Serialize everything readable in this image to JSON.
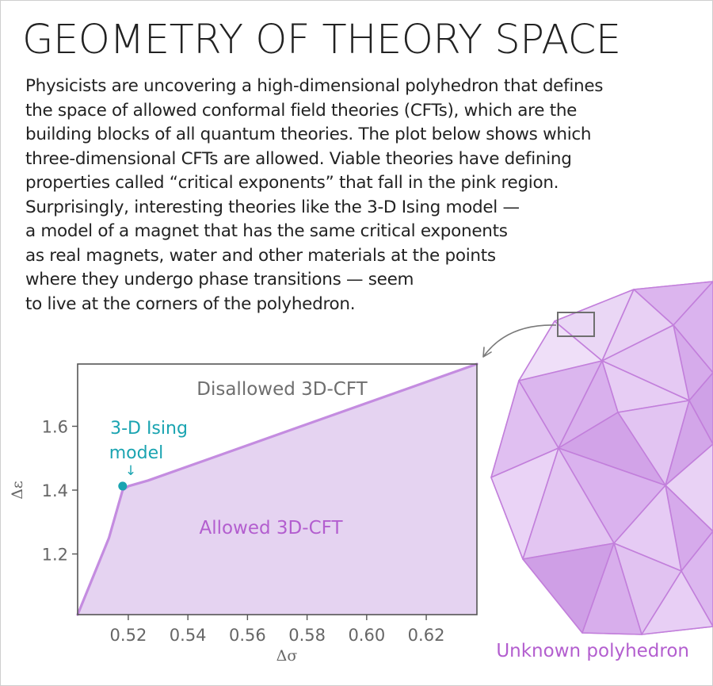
{
  "title": "GEOMETRY OF THEORY SPACE",
  "body_lines": [
    "Physicists are uncovering a high-dimensional polyhedron that defines",
    "the space of allowed conformal field theories (CFTs), which are the",
    "building blocks of all quantum theories. The plot below shows which",
    "three-dimensional CFTs are allowed. Viable theories have defining",
    "properties called “critical exponents” that fall in the pink region.",
    "Surprisingly, interesting theories like the 3-D Ising model —",
    "a model of a magnet that has the same critical exponents",
    "as real magnets, water and other materials at the points",
    "where they undergo phase transitions — seem",
    "to live at the corners of the polyhedron."
  ],
  "polyhedron_label": "Unknown polyhedron",
  "colors": {
    "text": "#222222",
    "allowed_fill": "#e5d3f1",
    "allowed_edge": "#c48ce0",
    "label_purple": "#b35ecf",
    "ising_teal": "#1aa4b1",
    "axis_gray": "#666666",
    "disallowed_text": "#6e6e6e"
  },
  "chart_data": {
    "type": "area",
    "title": "",
    "xlabel": "Δσ",
    "ylabel": "Δε",
    "xlim": [
      0.503,
      0.637
    ],
    "ylim": [
      1.01,
      1.795
    ],
    "xticks": [
      0.52,
      0.54,
      0.56,
      0.58,
      0.6,
      0.62
    ],
    "xtick_labels": [
      "0.52",
      "0.54",
      "0.56",
      "0.58",
      "0.60",
      "0.62"
    ],
    "yticks": [
      1.2,
      1.4,
      1.6
    ],
    "ytick_labels": [
      "1.2",
      "1.4",
      "1.6"
    ],
    "boundary": [
      {
        "x": 0.503,
        "y": 1.01
      },
      {
        "x": 0.5135,
        "y": 1.25
      },
      {
        "x": 0.5181,
        "y": 1.4
      },
      {
        "x": 0.5201,
        "y": 1.4125
      },
      {
        "x": 0.5266,
        "y": 1.43
      },
      {
        "x": 0.637,
        "y": 1.795
      }
    ],
    "regions": {
      "allowed": "Allowed 3D-CFT",
      "disallowed": "Disallowed 3D-CFT"
    },
    "annotation": {
      "label_line1": "3-D Ising",
      "label_line2": "model",
      "arrow": "↓",
      "x": 0.5181,
      "y": 1.4126
    }
  }
}
